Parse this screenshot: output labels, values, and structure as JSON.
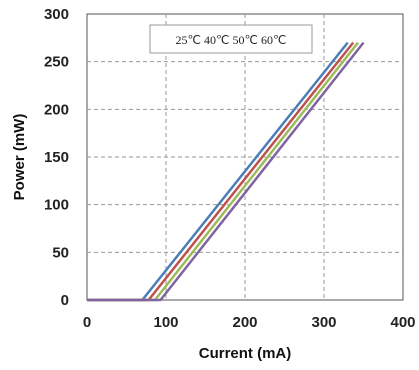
{
  "chart_data": {
    "type": "line",
    "xlabel": "Current (mA)",
    "ylabel": "Power (mW)",
    "xlim": [
      0,
      400
    ],
    "ylim": [
      0,
      300
    ],
    "x_ticks": [
      "0",
      "100",
      "200",
      "300",
      "400"
    ],
    "y_ticks": [
      "0",
      "50",
      "100",
      "150",
      "200",
      "250",
      "300"
    ],
    "grid": true,
    "legend": "top-right",
    "legend_text": "25℃ 40℃ 50℃ 60℃",
    "series": [
      {
        "name": "25℃",
        "color": "#4a7ebb",
        "x": [
          0,
          70,
          330
        ],
        "y": [
          0,
          0,
          270
        ]
      },
      {
        "name": "40℃",
        "color": "#c0504d",
        "x": [
          0,
          78,
          337
        ],
        "y": [
          0,
          0,
          270
        ]
      },
      {
        "name": "50℃",
        "color": "#9bbb59",
        "x": [
          0,
          86,
          343
        ],
        "y": [
          0,
          0,
          270
        ]
      },
      {
        "name": "60℃",
        "color": "#8064a2",
        "x": [
          0,
          93,
          350
        ],
        "y": [
          0,
          0,
          270
        ]
      }
    ]
  }
}
